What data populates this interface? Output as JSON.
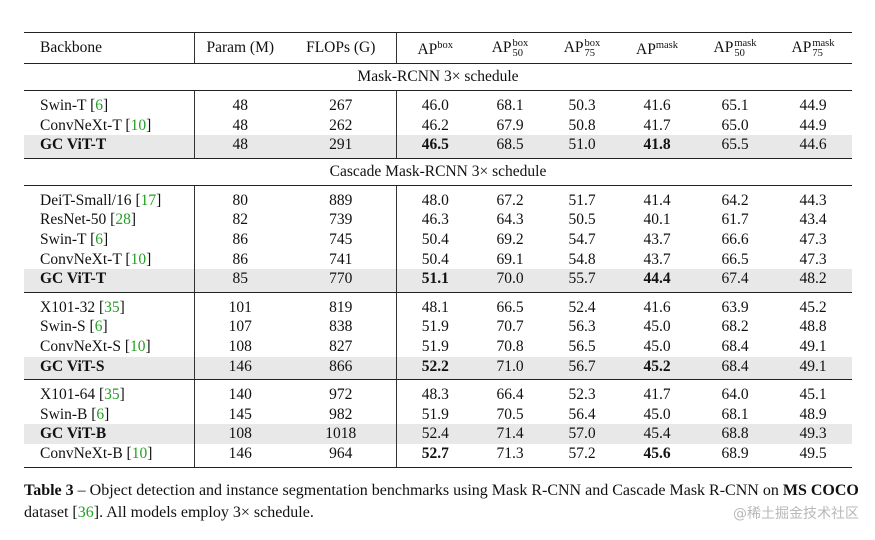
{
  "header": {
    "backbone": "Backbone",
    "param": "Param (M)",
    "flops": "FLOPs (G)",
    "ap_base": "AP",
    "ap_box_sup": "box",
    "ap_mask_sup": "mask",
    "sub50": "50",
    "sub75": "75"
  },
  "blocks": [
    {
      "section": "Mask-RCNN 3× schedule",
      "rows": [
        {
          "name": "Swin-T",
          "ref": "6",
          "param": "48",
          "flops": "267",
          "v": [
            "46.0",
            "68.1",
            "50.3",
            "41.6",
            "65.1",
            "44.9"
          ]
        },
        {
          "name": "ConvNeXt-T",
          "ref": "10",
          "param": "48",
          "flops": "262",
          "v": [
            "46.2",
            "67.9",
            "50.8",
            "41.7",
            "65.0",
            "44.9"
          ]
        },
        {
          "name": "GC ViT-T",
          "ref": "",
          "param": "48",
          "flops": "291",
          "v": [
            "46.5",
            "68.5",
            "51.0",
            "41.8",
            "65.5",
            "44.6"
          ]
        }
      ]
    },
    {
      "section": "Cascade Mask-RCNN 3× schedule",
      "rows": [
        {
          "name": "DeiT-Small/16",
          "ref": "17",
          "param": "80",
          "flops": "889",
          "v": [
            "48.0",
            "67.2",
            "51.7",
            "41.4",
            "64.2",
            "44.3"
          ]
        },
        {
          "name": "ResNet-50",
          "ref": "28",
          "param": "82",
          "flops": "739",
          "v": [
            "46.3",
            "64.3",
            "50.5",
            "40.1",
            "61.7",
            "43.4"
          ]
        },
        {
          "name": "Swin-T",
          "ref": "6",
          "param": "86",
          "flops": "745",
          "v": [
            "50.4",
            "69.2",
            "54.7",
            "43.7",
            "66.6",
            "47.3"
          ]
        },
        {
          "name": "ConvNeXt-T",
          "ref": "10",
          "param": "86",
          "flops": "741",
          "v": [
            "50.4",
            "69.1",
            "54.8",
            "43.7",
            "66.5",
            "47.3"
          ]
        },
        {
          "name": "GC ViT-T",
          "ref": "",
          "param": "85",
          "flops": "770",
          "v": [
            "51.1",
            "70.0",
            "55.7",
            "44.4",
            "67.4",
            "48.2"
          ]
        }
      ]
    },
    {
      "section": "",
      "rows": [
        {
          "name": "X101-32",
          "ref": "35",
          "param": "101",
          "flops": "819",
          "v": [
            "48.1",
            "66.5",
            "52.4",
            "41.6",
            "63.9",
            "45.2"
          ]
        },
        {
          "name": "Swin-S",
          "ref": "6",
          "param": "107",
          "flops": "838",
          "v": [
            "51.9",
            "70.7",
            "56.3",
            "45.0",
            "68.2",
            "48.8"
          ]
        },
        {
          "name": "ConvNeXt-S",
          "ref": "10",
          "param": "108",
          "flops": "827",
          "v": [
            "51.9",
            "70.8",
            "56.5",
            "45.0",
            "68.4",
            "49.1"
          ]
        },
        {
          "name": "GC ViT-S",
          "ref": "",
          "param": "146",
          "flops": "866",
          "v": [
            "52.2",
            "71.0",
            "56.7",
            "45.2",
            "68.4",
            "49.1"
          ]
        }
      ]
    },
    {
      "section": "",
      "rows": [
        {
          "name": "X101-64",
          "ref": "35",
          "param": "140",
          "flops": "972",
          "v": [
            "48.3",
            "66.4",
            "52.3",
            "41.7",
            "64.0",
            "45.1"
          ]
        },
        {
          "name": "Swin-B",
          "ref": "6",
          "param": "145",
          "flops": "982",
          "v": [
            "51.9",
            "70.5",
            "56.4",
            "45.0",
            "68.1",
            "48.9"
          ]
        },
        {
          "name": "GC ViT-B",
          "ref": "",
          "param": "108",
          "flops": "1018",
          "v": [
            "52.4",
            "71.4",
            "57.0",
            "45.4",
            "68.8",
            "49.3"
          ]
        },
        {
          "name": "ConvNeXt-B",
          "ref": "10",
          "param": "146",
          "flops": "964",
          "v": [
            "52.7",
            "71.3",
            "57.2",
            "45.6",
            "68.9",
            "49.5"
          ]
        }
      ]
    }
  ],
  "caption": {
    "label": "Table 3",
    "dash": " – ",
    "text1": "Object detection and instance segmentation benchmarks using Mask R-CNN and Cascade Mask R-CNN on ",
    "bold": "MS COCO",
    "text2": " dataset [",
    "ref": "36",
    "text3": "]. All models employ 3× schedule."
  },
  "watermark": "@稀土掘金技术社区"
}
